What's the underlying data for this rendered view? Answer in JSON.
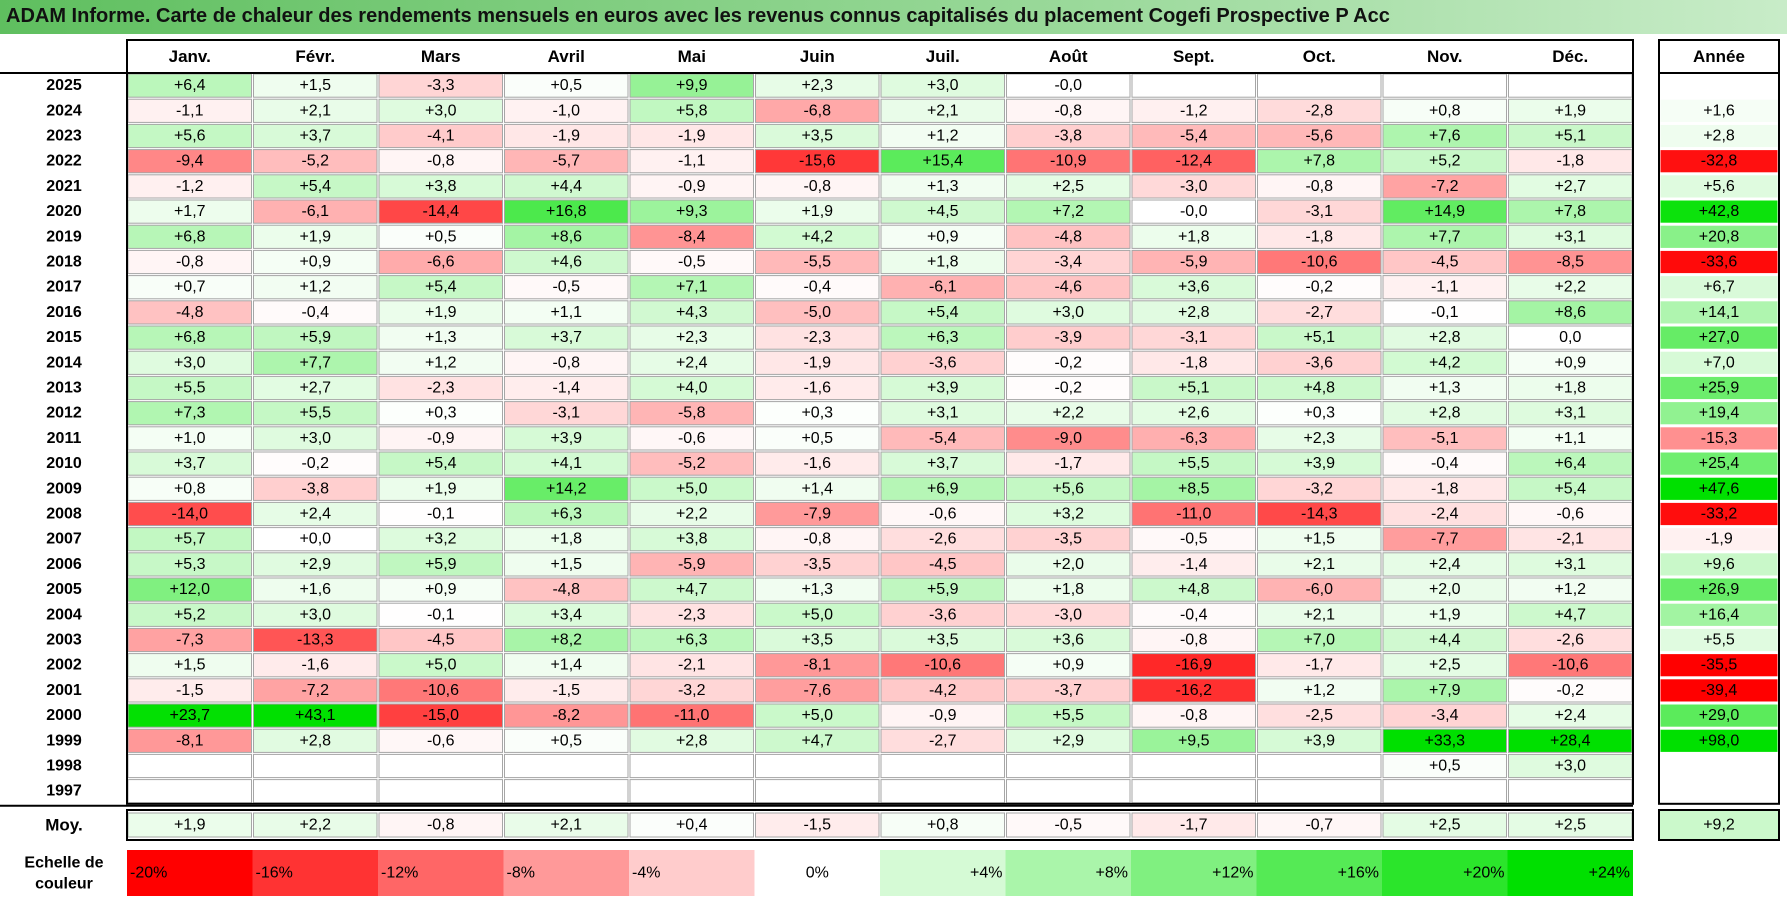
{
  "title": "ADAM Informe. Carte de chaleur des rendements mensuels en euros avec les revenus connus capitalisés du placement Cogefi Prospective P Acc",
  "colors": {
    "negative_max": "#ff0000",
    "zero": "#ffffff",
    "positive_max": "#00e000",
    "grid": "#a6a6a6",
    "frame": "#000000"
  },
  "chart_data": {
    "type": "heatmap",
    "title": "ADAM Informe. Carte de chaleur des rendements mensuels en euros avec les revenus connus capitalisés du placement Cogefi Prospective P Acc",
    "months": [
      "Janv.",
      "Févr.",
      "Mars",
      "Avril",
      "Mai",
      "Juin",
      "Juil.",
      "Août",
      "Sept.",
      "Oct.",
      "Nov.",
      "Déc."
    ],
    "annual_label": "Année",
    "rows": [
      {
        "year": "2025",
        "values": [
          "+6,4",
          "+1,5",
          "-3,3",
          "+0,5",
          "+9,9",
          "+2,3",
          "+3,0",
          "-0,0",
          "",
          "",
          "",
          ""
        ],
        "annual": ""
      },
      {
        "year": "2024",
        "values": [
          "-1,1",
          "+2,1",
          "+3,0",
          "-1,0",
          "+5,8",
          "-6,8",
          "+2,1",
          "-0,8",
          "-1,2",
          "-2,8",
          "+0,8",
          "+1,9"
        ],
        "annual": "+1,6"
      },
      {
        "year": "2023",
        "values": [
          "+5,6",
          "+3,7",
          "-4,1",
          "-1,9",
          "-1,9",
          "+3,5",
          "+1,2",
          "-3,8",
          "-5,4",
          "-5,6",
          "+7,6",
          "+5,1"
        ],
        "annual": "+2,8"
      },
      {
        "year": "2022",
        "values": [
          "-9,4",
          "-5,2",
          "-0,8",
          "-5,7",
          "-1,1",
          "-15,6",
          "+15,4",
          "-10,9",
          "-12,4",
          "+7,8",
          "+5,2",
          "-1,8"
        ],
        "annual": "-32,8"
      },
      {
        "year": "2021",
        "values": [
          "-1,2",
          "+5,4",
          "+3,8",
          "+4,4",
          "-0,9",
          "-0,8",
          "+1,3",
          "+2,5",
          "-3,0",
          "-0,8",
          "-7,2",
          "+2,7"
        ],
        "annual": "+5,6"
      },
      {
        "year": "2020",
        "values": [
          "+1,7",
          "-6,1",
          "-14,4",
          "+16,8",
          "+9,3",
          "+1,9",
          "+4,5",
          "+7,2",
          "-0,0",
          "-3,1",
          "+14,9",
          "+7,8"
        ],
        "annual": "+42,8"
      },
      {
        "year": "2019",
        "values": [
          "+6,8",
          "+1,9",
          "+0,5",
          "+8,6",
          "-8,4",
          "+4,2",
          "+0,9",
          "-4,8",
          "+1,8",
          "-1,8",
          "+7,7",
          "+3,1"
        ],
        "annual": "+20,8"
      },
      {
        "year": "2018",
        "values": [
          "-0,8",
          "+0,9",
          "-6,6",
          "+4,6",
          "-0,5",
          "-5,5",
          "+1,8",
          "-3,4",
          "-5,9",
          "-10,6",
          "-4,5",
          "-8,5"
        ],
        "annual": "-33,6"
      },
      {
        "year": "2017",
        "values": [
          "+0,7",
          "+1,2",
          "+5,4",
          "-0,5",
          "+7,1",
          "-0,4",
          "-6,1",
          "-4,6",
          "+3,6",
          "-0,2",
          "-1,1",
          "+2,2"
        ],
        "annual": "+6,7"
      },
      {
        "year": "2016",
        "values": [
          "-4,8",
          "-0,4",
          "+1,9",
          "+1,1",
          "+4,3",
          "-5,0",
          "+5,4",
          "+3,0",
          "+2,8",
          "-2,7",
          "-0,1",
          "+8,6"
        ],
        "annual": "+14,1"
      },
      {
        "year": "2015",
        "values": [
          "+6,8",
          "+5,9",
          "+1,3",
          "+3,7",
          "+2,3",
          "-2,3",
          "+6,3",
          "-3,9",
          "-3,1",
          "+5,1",
          "+2,8",
          "0,0"
        ],
        "annual": "+27,0"
      },
      {
        "year": "2014",
        "values": [
          "+3,0",
          "+7,7",
          "+1,2",
          "-0,8",
          "+2,4",
          "-1,9",
          "-3,6",
          "-0,2",
          "-1,8",
          "-3,6",
          "+4,2",
          "+0,9"
        ],
        "annual": "+7,0"
      },
      {
        "year": "2013",
        "values": [
          "+5,5",
          "+2,7",
          "-2,3",
          "-1,4",
          "+4,0",
          "-1,6",
          "+3,9",
          "-0,2",
          "+5,1",
          "+4,8",
          "+1,3",
          "+1,8"
        ],
        "annual": "+25,9"
      },
      {
        "year": "2012",
        "values": [
          "+7,3",
          "+5,5",
          "+0,3",
          "-3,1",
          "-5,8",
          "+0,3",
          "+3,1",
          "+2,2",
          "+2,6",
          "+0,3",
          "+2,8",
          "+3,1"
        ],
        "annual": "+19,4"
      },
      {
        "year": "2011",
        "values": [
          "+1,0",
          "+3,0",
          "-0,9",
          "+3,9",
          "-0,6",
          "+0,5",
          "-5,4",
          "-9,0",
          "-6,3",
          "+2,3",
          "-5,1",
          "+1,1"
        ],
        "annual": "-15,3"
      },
      {
        "year": "2010",
        "values": [
          "+3,7",
          "-0,2",
          "+5,4",
          "+4,1",
          "-5,2",
          "-1,6",
          "+3,7",
          "-1,7",
          "+5,5",
          "+3,9",
          "-0,4",
          "+6,4"
        ],
        "annual": "+25,4"
      },
      {
        "year": "2009",
        "values": [
          "+0,8",
          "-3,8",
          "+1,9",
          "+14,2",
          "+5,0",
          "+1,4",
          "+6,9",
          "+5,6",
          "+8,5",
          "-3,2",
          "-1,8",
          "+5,4"
        ],
        "annual": "+47,6"
      },
      {
        "year": "2008",
        "values": [
          "-14,0",
          "+2,4",
          "-0,1",
          "+6,3",
          "+2,2",
          "-7,9",
          "-0,6",
          "+3,2",
          "-11,0",
          "-14,3",
          "-2,4",
          "-0,6"
        ],
        "annual": "-33,2"
      },
      {
        "year": "2007",
        "values": [
          "+5,7",
          "+0,0",
          "+3,2",
          "+1,8",
          "+3,8",
          "-0,8",
          "-2,6",
          "-3,5",
          "-0,5",
          "+1,5",
          "-7,7",
          "-2,1"
        ],
        "annual": "-1,9"
      },
      {
        "year": "2006",
        "values": [
          "+5,3",
          "+2,9",
          "+5,9",
          "+1,5",
          "-5,9",
          "-3,5",
          "-4,5",
          "+2,0",
          "-1,4",
          "+2,1",
          "+2,4",
          "+3,1"
        ],
        "annual": "+9,6"
      },
      {
        "year": "2005",
        "values": [
          "+12,0",
          "+1,6",
          "+0,9",
          "-4,8",
          "+4,7",
          "+1,3",
          "+5,9",
          "+1,8",
          "+4,8",
          "-6,0",
          "+2,0",
          "+1,2"
        ],
        "annual": "+26,9"
      },
      {
        "year": "2004",
        "values": [
          "+5,2",
          "+3,0",
          "-0,1",
          "+3,4",
          "-2,3",
          "+5,0",
          "-3,6",
          "-3,0",
          "-0,4",
          "+2,1",
          "+1,9",
          "+4,7"
        ],
        "annual": "+16,4"
      },
      {
        "year": "2003",
        "values": [
          "-7,3",
          "-13,3",
          "-4,5",
          "+8,2",
          "+6,3",
          "+3,5",
          "+3,5",
          "+3,6",
          "-0,8",
          "+7,0",
          "+4,4",
          "-2,6"
        ],
        "annual": "+5,5"
      },
      {
        "year": "2002",
        "values": [
          "+1,5",
          "-1,6",
          "+5,0",
          "+1,4",
          "-2,1",
          "-8,1",
          "-10,6",
          "+0,9",
          "-16,9",
          "-1,7",
          "+2,5",
          "-10,6"
        ],
        "annual": "-35,5"
      },
      {
        "year": "2001",
        "values": [
          "-1,5",
          "-7,2",
          "-10,6",
          "-1,5",
          "-3,2",
          "-7,6",
          "-4,2",
          "-3,7",
          "-16,2",
          "+1,2",
          "+7,9",
          "-0,2"
        ],
        "annual": "-39,4"
      },
      {
        "year": "2000",
        "values": [
          "+23,7",
          "+43,1",
          "-15,0",
          "-8,2",
          "-11,0",
          "+5,0",
          "-0,9",
          "+5,5",
          "-0,8",
          "-2,5",
          "-3,4",
          "+2,4"
        ],
        "annual": "+29,0"
      },
      {
        "year": "1999",
        "values": [
          "-8,1",
          "+2,8",
          "-0,6",
          "+0,5",
          "+2,8",
          "+4,7",
          "-2,7",
          "+2,9",
          "+9,5",
          "+3,9",
          "+33,3",
          "+28,4"
        ],
        "annual": "+98,0"
      },
      {
        "year": "1998",
        "values": [
          "",
          "",
          "",
          "",
          "",
          "",
          "",
          "",
          "",
          "",
          "+0,5",
          "+3,0"
        ],
        "annual": ""
      },
      {
        "year": "1997",
        "values": [
          "",
          "",
          "",
          "",
          "",
          "",
          "",
          "",
          "",
          "",
          "",
          ""
        ],
        "annual": ""
      }
    ],
    "average": {
      "label": "Moy.",
      "values": [
        "+1,9",
        "+2,2",
        "-0,8",
        "+2,1",
        "+0,4",
        "-1,5",
        "+0,8",
        "-0,5",
        "-1,7",
        "-0,7",
        "+2,5",
        "+2,5"
      ],
      "annual": "+9,2"
    },
    "scale": {
      "label_line1": "Echelle de",
      "label_line2": "couleur",
      "steps": [
        "-20%",
        "-16%",
        "-12%",
        "-8%",
        "-4%",
        "0%",
        "+4%",
        "+8%",
        "+12%",
        "+16%",
        "+20%",
        "+24%"
      ],
      "values": [
        -20,
        -16,
        -12,
        -8,
        -4,
        0,
        4,
        8,
        12,
        16,
        20,
        24
      ]
    },
    "color_range_monthly": [
      -20,
      24
    ],
    "color_range_annual": [
      -35,
      45
    ]
  }
}
